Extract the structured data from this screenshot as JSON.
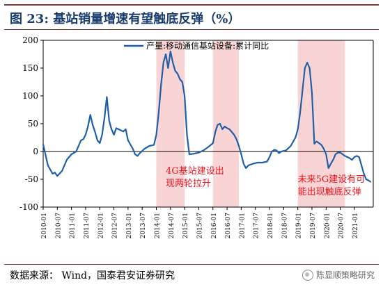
{
  "title": "图 23:  基站销量增速有望触底反弹（%）",
  "source": "数据来源：  Wind，国泰君安证券研究",
  "watermark": "陈显顺策略研究",
  "chart_data": {
    "type": "line",
    "ylim": [
      -100,
      200
    ],
    "yticks": [
      -100,
      -50,
      0,
      50,
      100,
      150,
      200
    ],
    "xlim": [
      "2010-01",
      "2021-09"
    ],
    "xtick_labels": [
      "2010-01",
      "2010-07",
      "2011-01",
      "2011-07",
      "2012-01",
      "2012-07",
      "2013-01",
      "2013-07",
      "2014-01",
      "2014-07",
      "2015-01",
      "2015-07",
      "2016-01",
      "2016-07",
      "2017-01",
      "2017-07",
      "2018-01",
      "2018-07",
      "2019-01",
      "2019-07",
      "2020-01",
      "2020-07",
      "2021-01"
    ],
    "legend": "top-right",
    "series": [
      {
        "name": "产量:移动通信基站设备:累计同比",
        "color": "#1f5fa8",
        "points": [
          [
            "2010-01",
            13
          ],
          [
            "2010-03",
            -25
          ],
          [
            "2010-05",
            -40
          ],
          [
            "2010-06",
            -38
          ],
          [
            "2010-07",
            -44
          ],
          [
            "2010-09",
            -35
          ],
          [
            "2010-11",
            -15
          ],
          [
            "2011-01",
            -5
          ],
          [
            "2011-03",
            0
          ],
          [
            "2011-04",
            10
          ],
          [
            "2011-05",
            20
          ],
          [
            "2011-06",
            22
          ],
          [
            "2011-07",
            30
          ],
          [
            "2011-08",
            45
          ],
          [
            "2011-09",
            66
          ],
          [
            "2011-10",
            48
          ],
          [
            "2011-11",
            35
          ],
          [
            "2011-12",
            20
          ],
          [
            "2012-01",
            15
          ],
          [
            "2012-02",
            30
          ],
          [
            "2012-03",
            60
          ],
          [
            "2012-04",
            98
          ],
          [
            "2012-05",
            55
          ],
          [
            "2012-06",
            40
          ],
          [
            "2012-07",
            30
          ],
          [
            "2012-08",
            42
          ],
          [
            "2012-09",
            40
          ],
          [
            "2012-10",
            38
          ],
          [
            "2012-11",
            36
          ],
          [
            "2012-12",
            40
          ],
          [
            "2013-01",
            20
          ],
          [
            "2013-03",
            5
          ],
          [
            "2013-04",
            -5
          ],
          [
            "2013-05",
            -8
          ],
          [
            "2013-06",
            -3
          ],
          [
            "2013-08",
            5
          ],
          [
            "2013-10",
            10
          ],
          [
            "2013-12",
            12
          ],
          [
            "2014-01",
            30
          ],
          [
            "2014-02",
            70
          ],
          [
            "2014-03",
            120
          ],
          [
            "2014-04",
            160
          ],
          [
            "2014-05",
            175
          ],
          [
            "2014-06",
            150
          ],
          [
            "2014-07",
            180
          ],
          [
            "2014-08",
            160
          ],
          [
            "2014-09",
            145
          ],
          [
            "2014-10",
            140
          ],
          [
            "2014-11",
            130
          ],
          [
            "2014-12",
            125
          ],
          [
            "2015-01",
            100
          ],
          [
            "2015-02",
            30
          ],
          [
            "2015-03",
            -5
          ],
          [
            "2015-05",
            -4
          ],
          [
            "2015-07",
            -2
          ],
          [
            "2015-09",
            2
          ],
          [
            "2015-11",
            8
          ],
          [
            "2016-01",
            15
          ],
          [
            "2016-02",
            35
          ],
          [
            "2016-03",
            48
          ],
          [
            "2016-04",
            50
          ],
          [
            "2016-05",
            40
          ],
          [
            "2016-06",
            45
          ],
          [
            "2016-07",
            42
          ],
          [
            "2016-08",
            40
          ],
          [
            "2016-09",
            35
          ],
          [
            "2016-10",
            30
          ],
          [
            "2016-11",
            22
          ],
          [
            "2016-12",
            10
          ],
          [
            "2017-01",
            -5
          ],
          [
            "2017-02",
            -22
          ],
          [
            "2017-03",
            -30
          ],
          [
            "2017-04",
            -25
          ],
          [
            "2017-06",
            -22
          ],
          [
            "2017-08",
            -20
          ],
          [
            "2017-10",
            -20
          ],
          [
            "2017-12",
            -18
          ],
          [
            "2018-01",
            -10
          ],
          [
            "2018-02",
            0
          ],
          [
            "2018-03",
            3
          ],
          [
            "2018-04",
            2
          ],
          [
            "2018-05",
            -3
          ],
          [
            "2018-06",
            0
          ],
          [
            "2018-08",
            2
          ],
          [
            "2018-10",
            10
          ],
          [
            "2018-12",
            25
          ],
          [
            "2019-01",
            40
          ],
          [
            "2019-02",
            70
          ],
          [
            "2019-03",
            110
          ],
          [
            "2019-04",
            150
          ],
          [
            "2019-05",
            160
          ],
          [
            "2019-06",
            150
          ],
          [
            "2019-07",
            105
          ],
          [
            "2019-08",
            14
          ],
          [
            "2019-09",
            18
          ],
          [
            "2019-10",
            15
          ],
          [
            "2019-11",
            12
          ],
          [
            "2019-12",
            5
          ],
          [
            "2020-01",
            -5
          ],
          [
            "2020-02",
            -30
          ],
          [
            "2020-03",
            -22
          ],
          [
            "2020-04",
            -15
          ],
          [
            "2020-05",
            -5
          ],
          [
            "2020-06",
            -2
          ],
          [
            "2020-07",
            -2
          ],
          [
            "2020-08",
            -5
          ],
          [
            "2020-09",
            -8
          ],
          [
            "2020-10",
            -10
          ],
          [
            "2020-11",
            -12
          ],
          [
            "2020-12",
            -15
          ],
          [
            "2021-01",
            -10
          ],
          [
            "2021-02",
            -8
          ],
          [
            "2021-03",
            -10
          ],
          [
            "2021-04",
            -25
          ],
          [
            "2021-05",
            -40
          ],
          [
            "2021-06",
            -50
          ],
          [
            "2021-07",
            -52
          ],
          [
            "2021-08",
            -55
          ]
        ]
      }
    ],
    "shaded_regions": [
      [
        "2014-01",
        "2015-01"
      ],
      [
        "2016-01",
        "2016-12"
      ],
      [
        "2019-01",
        "2020-09"
      ]
    ],
    "annotations": [
      {
        "lines": [
          "4G基站建设出",
          "现两轮拉升"
        ],
        "at": [
          "2014-05",
          -40
        ]
      },
      {
        "lines": [
          "未来5G建设有可",
          "能出现触底反弹"
        ],
        "at": [
          "2019-01",
          -55
        ]
      }
    ]
  }
}
